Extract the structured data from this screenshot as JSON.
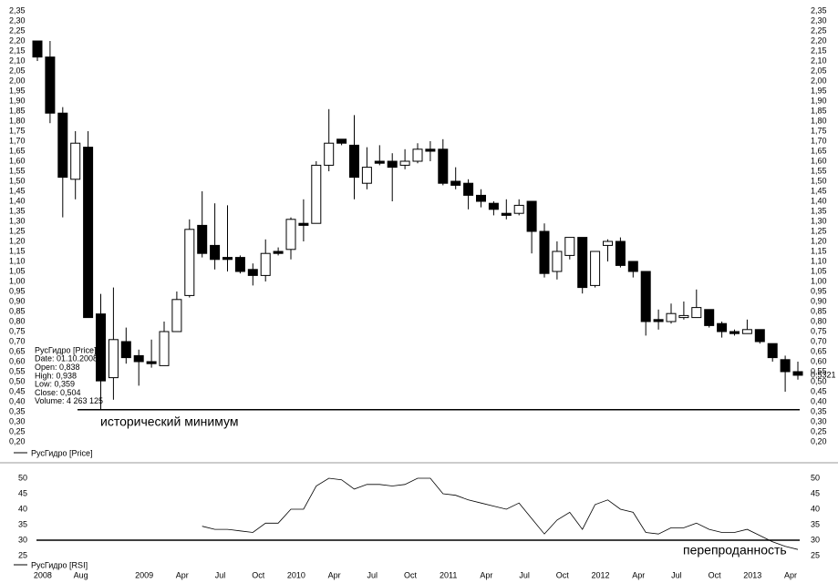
{
  "chart_data": [
    {
      "type": "candlestick",
      "legend": "РусГидро [Price]",
      "up_color": "#ffffff",
      "down_color": "#000000",
      "open": [
        2.2,
        2.12,
        1.84,
        1.51,
        1.67,
        0.838,
        0.52,
        0.7,
        0.63,
        0.6,
        0.58,
        0.75,
        0.93,
        1.28,
        1.18,
        1.12,
        1.12,
        1.06,
        1.03,
        1.15,
        1.16,
        1.29,
        1.29,
        1.58,
        1.71,
        1.68,
        1.49,
        1.6,
        1.6,
        1.58,
        1.6,
        1.66,
        1.66,
        1.5,
        1.49,
        1.43,
        1.39,
        1.34,
        1.34,
        1.4,
        1.25,
        1.05,
        1.13,
        1.22,
        0.98,
        1.18,
        1.2,
        1.1,
        1.05,
        0.81,
        0.8,
        0.82,
        0.82,
        0.86,
        0.79,
        0.75,
        0.74,
        0.76,
        0.69,
        0.61,
        0.55
      ],
      "high": [
        2.2,
        2.2,
        1.87,
        1.75,
        1.75,
        0.938,
        0.97,
        0.77,
        0.66,
        0.71,
        0.8,
        0.95,
        1.31,
        1.45,
        1.39,
        1.38,
        1.13,
        1.09,
        1.21,
        1.17,
        1.32,
        1.41,
        1.6,
        1.86,
        1.71,
        1.83,
        1.67,
        1.68,
        1.64,
        1.66,
        1.69,
        1.7,
        1.71,
        1.57,
        1.51,
        1.46,
        1.4,
        1.41,
        1.41,
        1.4,
        1.29,
        1.2,
        1.22,
        1.22,
        1.15,
        1.21,
        1.22,
        1.1,
        1.05,
        0.86,
        0.89,
        0.9,
        0.96,
        0.86,
        0.8,
        0.76,
        0.81,
        0.76,
        0.69,
        0.63,
        0.6
      ],
      "low": [
        2.1,
        1.79,
        1.32,
        1.41,
        0.82,
        0.359,
        0.41,
        0.59,
        0.48,
        0.57,
        0.58,
        0.75,
        0.92,
        1.12,
        1.06,
        1.05,
        1.04,
        0.98,
        1.0,
        1.13,
        1.11,
        1.2,
        1.29,
        1.55,
        1.68,
        1.41,
        1.46,
        1.58,
        1.4,
        1.56,
        1.59,
        1.6,
        1.48,
        1.46,
        1.36,
        1.37,
        1.33,
        1.31,
        1.33,
        1.14,
        1.02,
        1.01,
        1.11,
        0.94,
        0.97,
        1.1,
        1.07,
        1.02,
        0.73,
        0.76,
        0.79,
        0.81,
        0.82,
        0.77,
        0.72,
        0.73,
        0.74,
        0.69,
        0.6,
        0.45,
        0.51
      ],
      "close": [
        2.12,
        1.84,
        1.52,
        1.69,
        0.82,
        0.504,
        0.71,
        0.62,
        0.6,
        0.59,
        0.75,
        0.91,
        1.26,
        1.14,
        1.11,
        1.11,
        1.05,
        1.03,
        1.14,
        1.14,
        1.31,
        1.28,
        1.58,
        1.69,
        1.69,
        1.52,
        1.57,
        1.59,
        1.57,
        1.6,
        1.66,
        1.65,
        1.49,
        1.48,
        1.43,
        1.4,
        1.36,
        1.33,
        1.38,
        1.25,
        1.04,
        1.15,
        1.22,
        0.97,
        1.15,
        1.2,
        1.08,
        1.05,
        0.8,
        0.8,
        0.84,
        0.83,
        0.87,
        0.78,
        0.75,
        0.74,
        0.76,
        0.7,
        0.62,
        0.55,
        0.5321
      ],
      "ylim": [
        0.2,
        2.35
      ],
      "yticks": [
        {
          "value": 2.35,
          "label": "2,35"
        },
        {
          "value": 2.3,
          "label": "2,30"
        },
        {
          "value": 2.25,
          "label": "2,25"
        },
        {
          "value": 2.2,
          "label": "2,20"
        },
        {
          "value": 2.15,
          "label": "2,15"
        },
        {
          "value": 2.1,
          "label": "2,10"
        },
        {
          "value": 2.05,
          "label": "2,05"
        },
        {
          "value": 2.0,
          "label": "2,00"
        },
        {
          "value": 1.95,
          "label": "1,95"
        },
        {
          "value": 1.9,
          "label": "1,90"
        },
        {
          "value": 1.85,
          "label": "1,85"
        },
        {
          "value": 1.8,
          "label": "1,80"
        },
        {
          "value": 1.75,
          "label": "1,75"
        },
        {
          "value": 1.7,
          "label": "1,70"
        },
        {
          "value": 1.65,
          "label": "1,65"
        },
        {
          "value": 1.6,
          "label": "1,60"
        },
        {
          "value": 1.55,
          "label": "1,55"
        },
        {
          "value": 1.5,
          "label": "1,50"
        },
        {
          "value": 1.45,
          "label": "1,45"
        },
        {
          "value": 1.4,
          "label": "1,40"
        },
        {
          "value": 1.35,
          "label": "1,35"
        },
        {
          "value": 1.3,
          "label": "1,30"
        },
        {
          "value": 1.25,
          "label": "1,25"
        },
        {
          "value": 1.2,
          "label": "1,20"
        },
        {
          "value": 1.15,
          "label": "1,15"
        },
        {
          "value": 1.1,
          "label": "1,10"
        },
        {
          "value": 1.05,
          "label": "1,05"
        },
        {
          "value": 1.0,
          "label": "1,00"
        },
        {
          "value": 0.95,
          "label": "0,95"
        },
        {
          "value": 0.9,
          "label": "0,90"
        },
        {
          "value": 0.85,
          "label": "0,85"
        },
        {
          "value": 0.8,
          "label": "0,80"
        },
        {
          "value": 0.75,
          "label": "0,75"
        },
        {
          "value": 0.7,
          "label": "0,70"
        },
        {
          "value": 0.65,
          "label": "0,65"
        },
        {
          "value": 0.6,
          "label": "0,60"
        },
        {
          "value": 0.55,
          "label": "0,55"
        },
        {
          "value": 0.5,
          "label": "0,50"
        },
        {
          "value": 0.45,
          "label": "0,45"
        },
        {
          "value": 0.4,
          "label": "0,40"
        },
        {
          "value": 0.35,
          "label": "0,35"
        },
        {
          "value": 0.3,
          "label": "0,30"
        },
        {
          "value": 0.25,
          "label": "0,25"
        },
        {
          "value": 0.2,
          "label": "0,20"
        }
      ],
      "last_price": {
        "value": 0.5321,
        "label": "0,5321"
      },
      "hline": {
        "value": 0.36,
        "label": "исторический минимум"
      },
      "tooltip": [
        "РусГидро [Price]",
        "Date: 01.10.2008",
        "Open: 0,838",
        "High: 0,938",
        "Low: 0,359",
        "Close: 0,504",
        "Volume: 4 263 125"
      ]
    },
    {
      "type": "line",
      "legend": "РусГидро [RSI]",
      "categories": [
        null,
        "2008",
        null,
        null,
        "Aug",
        null,
        null,
        null,
        null,
        "2009",
        null,
        null,
        "Apr",
        null,
        null,
        "Jul",
        null,
        null,
        "Oct",
        null,
        null,
        "2010",
        null,
        null,
        "Apr",
        null,
        null,
        "Jul",
        null,
        null,
        "Oct",
        null,
        null,
        "2011",
        null,
        null,
        "Apr",
        null,
        null,
        "Jul",
        null,
        null,
        "Oct",
        null,
        null,
        "2012",
        null,
        null,
        "Apr",
        null,
        null,
        "Jul",
        null,
        null,
        "Oct",
        null,
        null,
        "2013",
        null,
        null,
        "Apr"
      ],
      "color": "#000000",
      "values": [
        null,
        null,
        null,
        null,
        null,
        null,
        null,
        null,
        null,
        null,
        null,
        null,
        null,
        34.5,
        33.5,
        33.5,
        33,
        32.5,
        35.5,
        35.5,
        40,
        40,
        47.5,
        50,
        49.5,
        46.5,
        48,
        48,
        47.5,
        48,
        50,
        50,
        45,
        44.5,
        43,
        42,
        41,
        40,
        42,
        37,
        32,
        36.5,
        39,
        33.5,
        41.5,
        43,
        40,
        39,
        32.5,
        32,
        34,
        34,
        35.5,
        33.5,
        32.5,
        32.5,
        33.5,
        31.5,
        29.5,
        28,
        27
      ],
      "ylim": [
        25,
        50
      ],
      "yticks": [
        25,
        30,
        35,
        40,
        45,
        50
      ],
      "hline": {
        "value": 30,
        "label": "перепроданность"
      }
    }
  ]
}
